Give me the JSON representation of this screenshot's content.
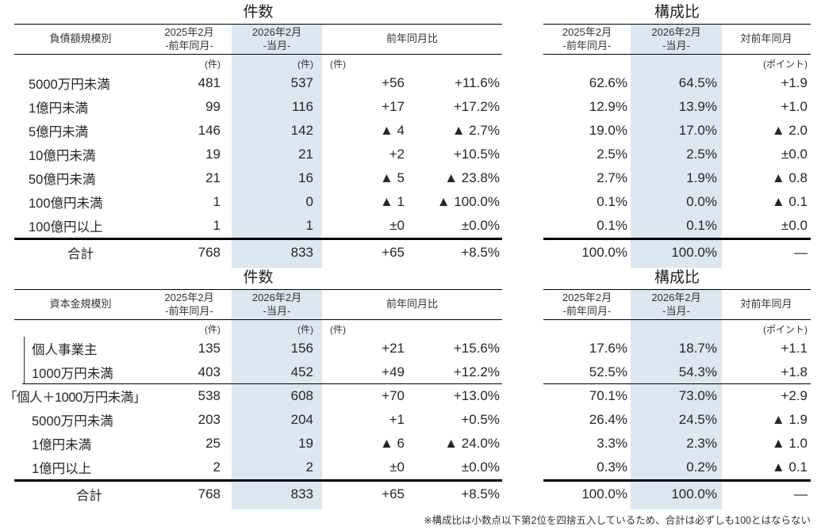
{
  "headers": {
    "count_title": "件数",
    "ratio_title": "構成比",
    "prev_month": "2025年2月",
    "prev_month_sub": "-前年同月-",
    "cur_month": "2026年2月",
    "cur_month_sub": "-当月-",
    "yoy": "前年同月比",
    "yoy_ratio": "対前年同月",
    "unit_count": "(件)",
    "unit_point": "(ポイント)",
    "total_label": "合計"
  },
  "colors": {
    "highlight": "#dce7f2",
    "rule": "#000000",
    "text": "#262626"
  },
  "debt": {
    "row_header": "負債額規模別",
    "count_rows": [
      {
        "label": "5000万円未満",
        "prev": "481",
        "cur": "537",
        "diff": "+56",
        "pct": "+11.6%"
      },
      {
        "label": "1億円未満",
        "prev": "99",
        "cur": "116",
        "diff": "+17",
        "pct": "+17.2%"
      },
      {
        "label": "5億円未満",
        "prev": "146",
        "cur": "142",
        "diff": "▲ 4",
        "pct": "▲ 2.7%"
      },
      {
        "label": "10億円未満",
        "prev": "19",
        "cur": "21",
        "diff": "+2",
        "pct": "+10.5%"
      },
      {
        "label": "50億円未満",
        "prev": "21",
        "cur": "16",
        "diff": "▲ 5",
        "pct": "▲ 23.8%"
      },
      {
        "label": "100億円未満",
        "prev": "1",
        "cur": "0",
        "diff": "▲ 1",
        "pct": "▲ 100.0%"
      },
      {
        "label": "100億円以上",
        "prev": "1",
        "cur": "1",
        "diff": "±0",
        "pct": "±0.0%"
      }
    ],
    "count_total": {
      "prev": "768",
      "cur": "833",
      "diff": "+65",
      "pct": "+8.5%"
    },
    "ratio_rows": [
      {
        "prev": "62.6%",
        "cur": "64.5%",
        "diff": "+1.9"
      },
      {
        "prev": "12.9%",
        "cur": "13.9%",
        "diff": "+1.0"
      },
      {
        "prev": "19.0%",
        "cur": "17.0%",
        "diff": "▲ 2.0"
      },
      {
        "prev": "2.5%",
        "cur": "2.5%",
        "diff": "±0.0"
      },
      {
        "prev": "2.7%",
        "cur": "1.9%",
        "diff": "▲ 0.8"
      },
      {
        "prev": "0.1%",
        "cur": "0.0%",
        "diff": "▲ 0.1"
      },
      {
        "prev": "0.1%",
        "cur": "0.1%",
        "diff": "±0.0"
      }
    ],
    "ratio_total": {
      "prev": "100.0%",
      "cur": "100.0%",
      "diff": "—"
    }
  },
  "capital": {
    "row_header": "資本金規模別",
    "count_rows": [
      {
        "label": "個人事業主",
        "prev": "135",
        "cur": "156",
        "diff": "+21",
        "pct": "+15.6%"
      },
      {
        "label": "1000万円未満",
        "prev": "403",
        "cur": "452",
        "diff": "+49",
        "pct": "+12.2%",
        "group_end": true
      },
      {
        "label": "「個人＋1000万円未満」",
        "prev": "538",
        "cur": "608",
        "diff": "+70",
        "pct": "+13.0%",
        "group_total": true
      },
      {
        "label": "5000万円未満",
        "prev": "203",
        "cur": "204",
        "diff": "+1",
        "pct": "+0.5%"
      },
      {
        "label": "1億円未満",
        "prev": "25",
        "cur": "19",
        "diff": "▲ 6",
        "pct": "▲ 24.0%"
      },
      {
        "label": "1億円以上",
        "prev": "2",
        "cur": "2",
        "diff": "±0",
        "pct": "±0.0%"
      }
    ],
    "count_total": {
      "prev": "768",
      "cur": "833",
      "diff": "+65",
      "pct": "+8.5%"
    },
    "ratio_rows": [
      {
        "prev": "17.6%",
        "cur": "18.7%",
        "diff": "+1.1"
      },
      {
        "prev": "52.5%",
        "cur": "54.3%",
        "diff": "+1.8",
        "group_end": true
      },
      {
        "prev": "70.1%",
        "cur": "73.0%",
        "diff": "+2.9"
      },
      {
        "prev": "26.4%",
        "cur": "24.5%",
        "diff": "▲ 1.9"
      },
      {
        "prev": "3.3%",
        "cur": "2.3%",
        "diff": "▲ 1.0"
      },
      {
        "prev": "0.3%",
        "cur": "0.2%",
        "diff": "▲ 0.1"
      }
    ],
    "ratio_total": {
      "prev": "100.0%",
      "cur": "100.0%",
      "diff": "—"
    }
  },
  "footnote": "※構成比は小数点以下第2位を四捨五入しているため、合計は必ずしも100とはならない"
}
